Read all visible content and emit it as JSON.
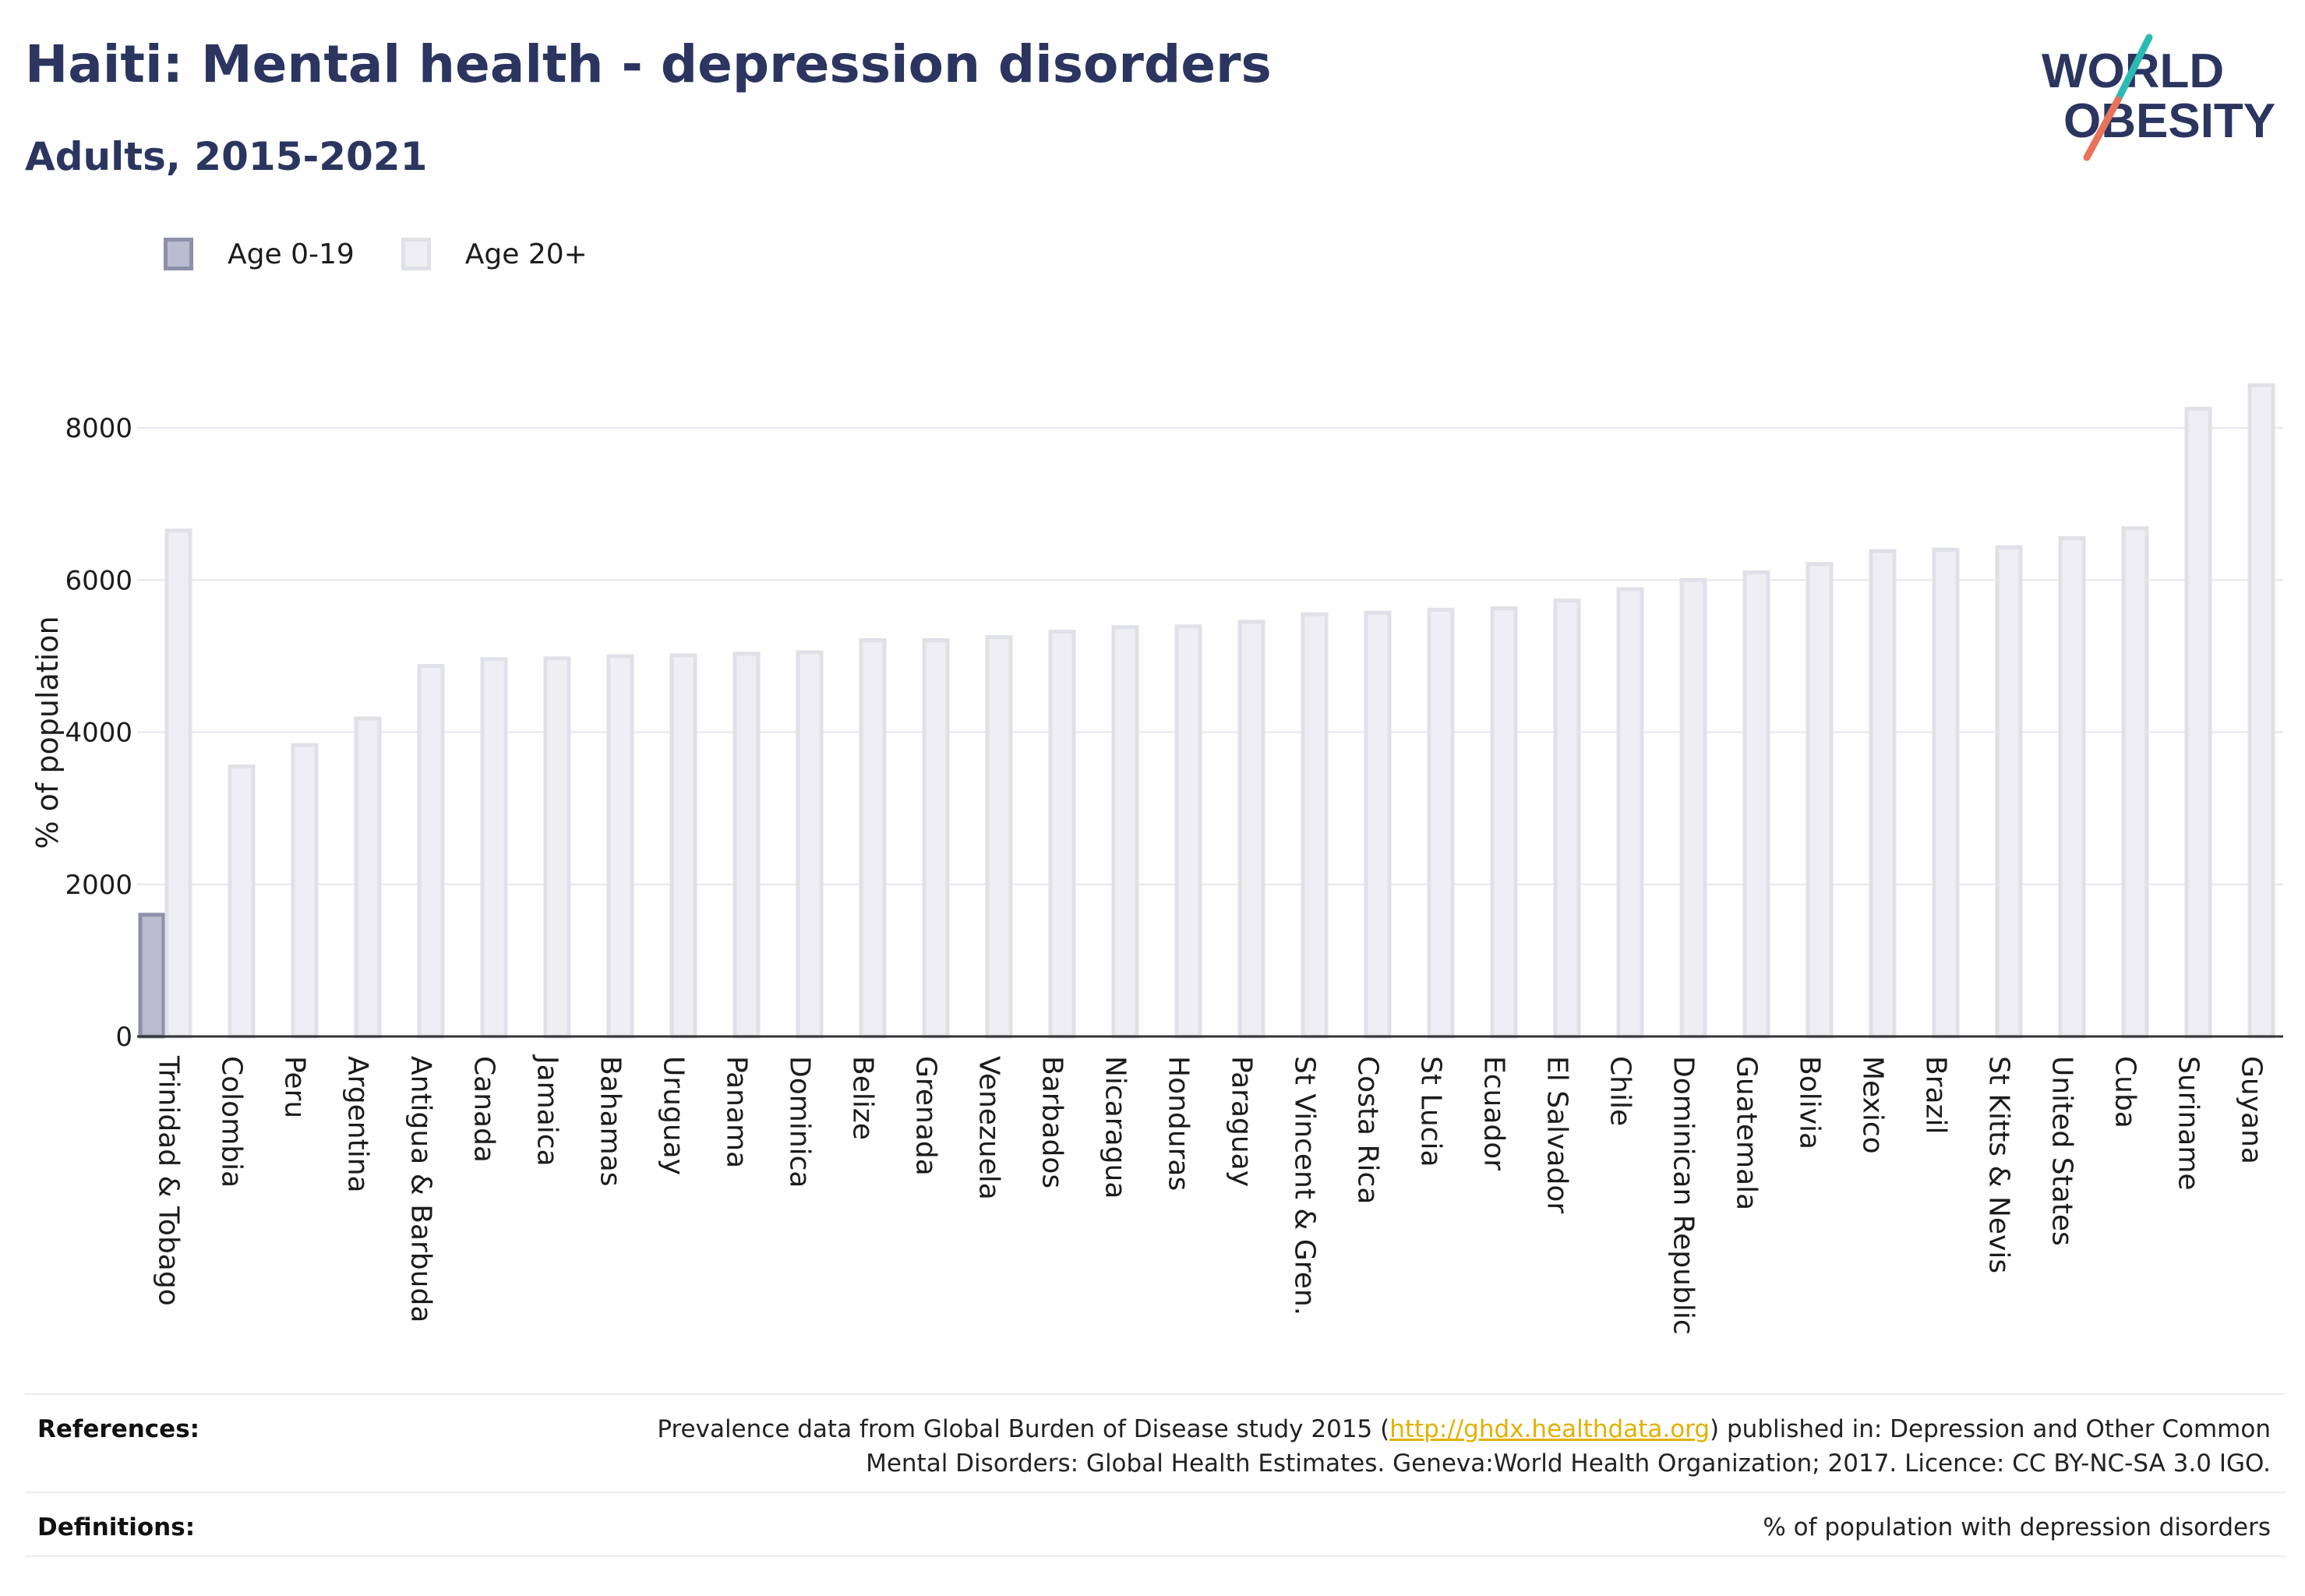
{
  "header": {
    "title": "Haiti: Mental health - depression disorders",
    "subtitle": "Adults, 2015-2021"
  },
  "logo": {
    "line1": "WORLD",
    "line2": "OBESITY",
    "colors": {
      "navy": "#2b3560",
      "teal": "#2bbbb4",
      "coral": "#e8735a"
    }
  },
  "legend": {
    "items": [
      {
        "label": "Age 0-19",
        "fill": "#b9bccf",
        "stroke": "#8c90ab"
      },
      {
        "label": "Age 20+",
        "fill": "#eeeef3",
        "stroke": "#e0e1e8"
      }
    ]
  },
  "chart_data": {
    "type": "bar",
    "ylabel": "% of population",
    "ylim": [
      0,
      8700
    ],
    "yticks": [
      0,
      2000,
      4000,
      6000,
      8000
    ],
    "grid": true,
    "legend_position": "top-left",
    "categories": [
      "Trinidad & Tobago",
      "Colombia",
      "Peru",
      "Argentina",
      "Antigua & Barbuda",
      "Canada",
      "Jamaica",
      "Bahamas",
      "Uruguay",
      "Panama",
      "Dominica",
      "Belize",
      "Grenada",
      "Venezuela",
      "Barbados",
      "Nicaragua",
      "Honduras",
      "Paraguay",
      "St Vincent & Gren.",
      "Costa Rica",
      "St Lucia",
      "Ecuador",
      "El Salvador",
      "Chile",
      "Dominican Republic",
      "Guatemala",
      "Bolivia",
      "Mexico",
      "Brazil",
      "St Kitts & Nevis",
      "United States",
      "Cuba",
      "Suriname",
      "Guyana"
    ],
    "series": [
      {
        "name": "Age 0-19",
        "values": [
          1600,
          null,
          null,
          null,
          null,
          null,
          null,
          null,
          null,
          null,
          null,
          null,
          null,
          null,
          null,
          null,
          null,
          null,
          null,
          null,
          null,
          null,
          null,
          null,
          null,
          null,
          null,
          null,
          null,
          null,
          null,
          null,
          null,
          null
        ]
      },
      {
        "name": "Age 20+",
        "values": [
          6650,
          3550,
          3830,
          4180,
          4870,
          4960,
          4970,
          5000,
          5010,
          5030,
          5050,
          5210,
          5210,
          5250,
          5320,
          5380,
          5390,
          5450,
          5550,
          5570,
          5610,
          5630,
          5730,
          5880,
          6000,
          6100,
          6210,
          6380,
          6400,
          6430,
          6550,
          6680,
          8250,
          8560
        ]
      }
    ]
  },
  "footer": {
    "references_label": "References:",
    "references_pre": "Prevalence data from Global Burden of Disease study 2015 (",
    "references_link": "http://ghdx.healthdata.org",
    "references_post": ") published in: Depression and Other Common",
    "references_line2": "Mental Disorders: Global Health Estimates. Geneva:World Health Organization; 2017. Licence: CC BY-NC-SA 3.0 IGO.",
    "definitions_label": "Definitions:",
    "definitions_text": "% of population with depression disorders"
  }
}
